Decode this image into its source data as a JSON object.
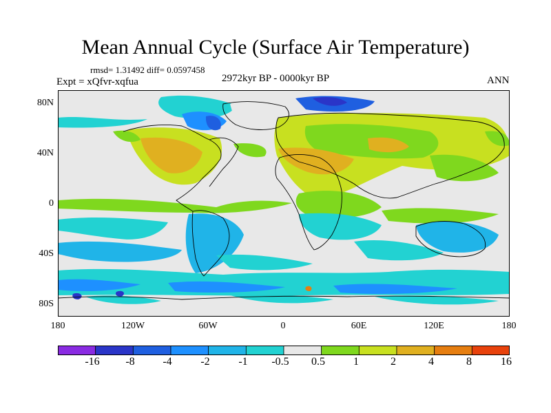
{
  "title": "Mean Annual Cycle (Surface Air Temperature)",
  "stats": "rmsd= 1.31492 diff= 0.0597458",
  "experiment": "Expt = xQfvr-xqfua",
  "period": "2972kyr BP - 0000kyr BP",
  "season": "ANN",
  "axes": {
    "y_ticks": [
      "80N",
      "40N",
      "0",
      "40S",
      "80S"
    ],
    "x_ticks": [
      "180",
      "120W",
      "60W",
      "0",
      "60E",
      "120E",
      "180"
    ]
  },
  "colorbar": {
    "labels": [
      "-16",
      "-8",
      "-4",
      "-2",
      "-1",
      "-0.5",
      "0.5",
      "1",
      "2",
      "4",
      "8",
      "16"
    ],
    "colors": [
      "#8a2be2",
      "#2a35c8",
      "#1f5fe0",
      "#1e90ff",
      "#20b4e8",
      "#22d2d2",
      "#e8e8e8",
      "#7fd81e",
      "#c8e020",
      "#e0b020",
      "#e67e10",
      "#e8420c"
    ]
  }
}
